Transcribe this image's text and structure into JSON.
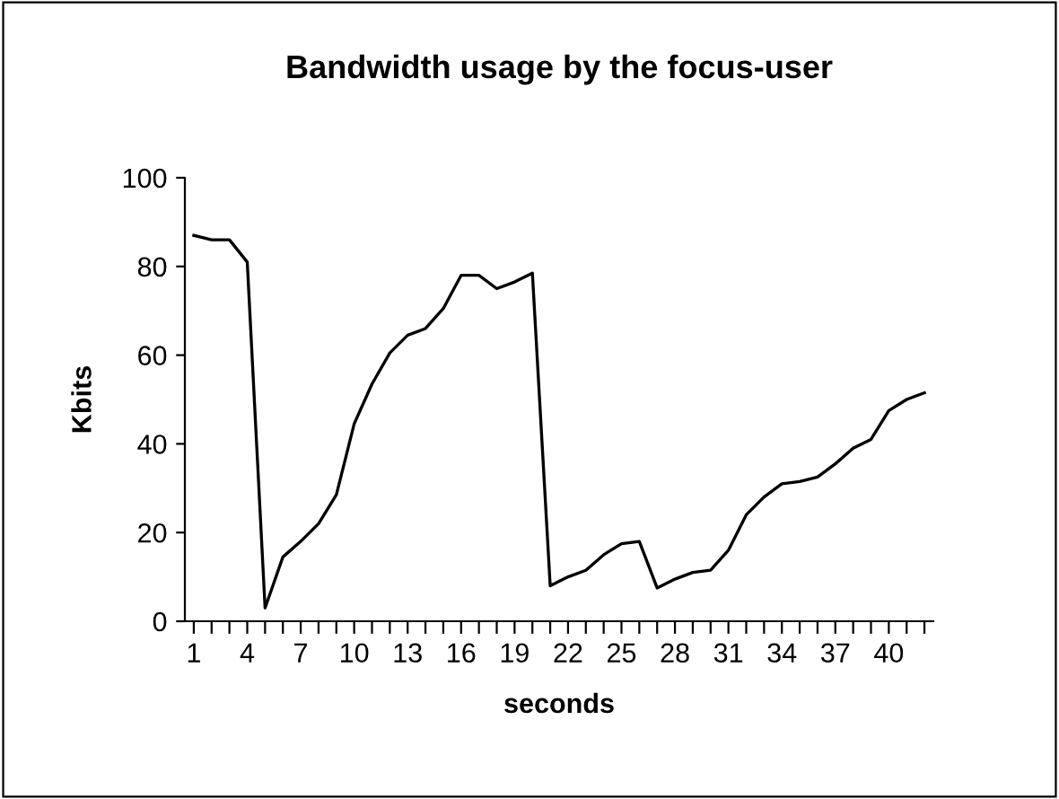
{
  "chart_data": {
    "type": "line",
    "title": "Bandwidth usage by the focus-user",
    "xlabel": "seconds",
    "ylabel": "Kbits",
    "categories": [
      "1",
      null,
      null,
      "4",
      null,
      null,
      "7",
      null,
      null,
      "10",
      null,
      null,
      "13",
      null,
      null,
      "16",
      null,
      null,
      "19",
      null,
      null,
      "22",
      null,
      null,
      "25",
      null,
      null,
      "28",
      null,
      null,
      "31",
      null,
      null,
      "34",
      null,
      null,
      "37",
      null,
      null,
      "40",
      null,
      null
    ],
    "series": [
      {
        "color": "#000000",
        "values": [
          87,
          86,
          86,
          81,
          3,
          14.5,
          18,
          22,
          28.5,
          44.5,
          53.5,
          60.5,
          64.5,
          66,
          70.5,
          78,
          78,
          75,
          76.5,
          78.5,
          8,
          10,
          11.5,
          15,
          17.5,
          18,
          7.5,
          9.5,
          11,
          11.5,
          16,
          24,
          28,
          31,
          31.5,
          32.5,
          35.5,
          39,
          41,
          47.5,
          50,
          51.5
        ]
      }
    ],
    "ylim": [
      0,
      100
    ],
    "yticks": [
      0,
      20,
      40,
      60,
      80,
      100
    ],
    "grid": false,
    "marker": "none",
    "line_style": "solid"
  }
}
